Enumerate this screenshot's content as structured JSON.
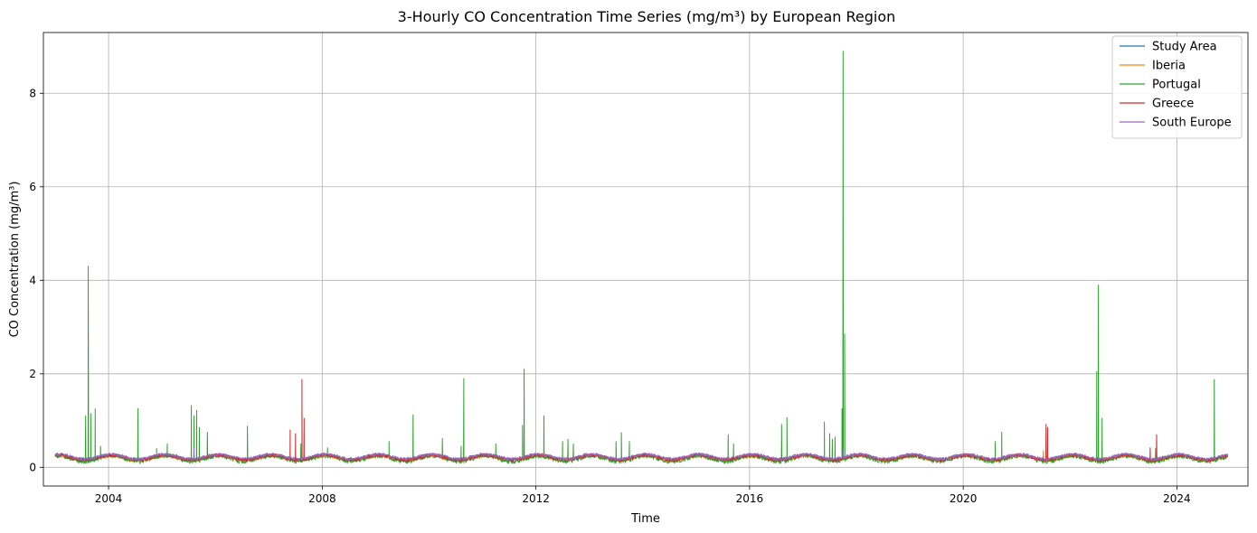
{
  "chart_data": {
    "type": "line",
    "title": "3-Hourly CO Concentration Time Series (mg/m³) by European Region",
    "xlabel": "Time",
    "ylabel": "CO Concentration (mg/m³)",
    "xlim": [
      2002.78,
      2025.33
    ],
    "ylim": [
      -0.4,
      9.3
    ],
    "x_ticks": [
      2004,
      2008,
      2012,
      2016,
      2020,
      2024
    ],
    "x_tick_labels": [
      "2004",
      "2008",
      "2012",
      "2016",
      "2020",
      "2024"
    ],
    "y_ticks": [
      0,
      2,
      4,
      6,
      8
    ],
    "y_tick_labels": [
      "0",
      "2",
      "4",
      "6",
      "8"
    ],
    "grid": true,
    "legend_position": "top-right",
    "data_range": [
      2003.0,
      2024.95
    ],
    "series": [
      {
        "name": "Study Area",
        "color": "#1f77b4",
        "baseline": {
          "mean": 0.21,
          "amplitude": 0.05,
          "noise": 0.035
        },
        "spikes": []
      },
      {
        "name": "Iberia",
        "color": "#ff7f0e",
        "baseline": {
          "mean": 0.2,
          "amplitude": 0.05,
          "noise": 0.04
        },
        "spikes": [
          [
            2012.6,
            0.45
          ],
          [
            2016.6,
            0.38
          ],
          [
            2021.5,
            0.36
          ]
        ]
      },
      {
        "name": "Portugal",
        "color": "#2ca02c",
        "baseline": {
          "mean": 0.19,
          "amplitude": 0.06,
          "noise": 0.05
        },
        "spikes": [
          [
            2003.57,
            1.1
          ],
          [
            2003.62,
            4.3
          ],
          [
            2003.67,
            1.15
          ],
          [
            2003.75,
            1.25
          ],
          [
            2003.85,
            0.45
          ],
          [
            2004.55,
            1.26
          ],
          [
            2004.9,
            0.4
          ],
          [
            2005.1,
            0.5
          ],
          [
            2005.55,
            1.32
          ],
          [
            2005.6,
            1.1
          ],
          [
            2005.65,
            1.22
          ],
          [
            2005.7,
            0.85
          ],
          [
            2005.85,
            0.75
          ],
          [
            2006.6,
            0.88
          ],
          [
            2007.6,
            0.5
          ],
          [
            2008.1,
            0.42
          ],
          [
            2009.25,
            0.55
          ],
          [
            2009.7,
            1.12
          ],
          [
            2010.25,
            0.62
          ],
          [
            2010.6,
            0.45
          ],
          [
            2010.65,
            1.9
          ],
          [
            2011.25,
            0.5
          ],
          [
            2011.75,
            0.9
          ],
          [
            2011.78,
            2.1
          ],
          [
            2012.15,
            1.1
          ],
          [
            2012.5,
            0.55
          ],
          [
            2012.6,
            0.6
          ],
          [
            2012.7,
            0.5
          ],
          [
            2013.5,
            0.55
          ],
          [
            2013.6,
            0.74
          ],
          [
            2013.75,
            0.55
          ],
          [
            2015.6,
            0.7
          ],
          [
            2015.7,
            0.5
          ],
          [
            2016.6,
            0.92
          ],
          [
            2016.7,
            1.06
          ],
          [
            2017.4,
            0.97
          ],
          [
            2017.5,
            0.72
          ],
          [
            2017.55,
            0.6
          ],
          [
            2017.6,
            0.65
          ],
          [
            2017.73,
            1.25
          ],
          [
            2017.75,
            8.9
          ],
          [
            2017.78,
            2.85
          ],
          [
            2020.6,
            0.55
          ],
          [
            2020.72,
            0.75
          ],
          [
            2022.5,
            2.05
          ],
          [
            2022.53,
            3.9
          ],
          [
            2022.6,
            1.05
          ],
          [
            2023.6,
            0.4
          ],
          [
            2024.7,
            1.88
          ]
        ]
      },
      {
        "name": "Greece",
        "color": "#d62728",
        "baseline": {
          "mean": 0.21,
          "amplitude": 0.05,
          "noise": 0.035
        },
        "spikes": [
          [
            2007.4,
            0.8
          ],
          [
            2007.5,
            0.72
          ],
          [
            2007.62,
            1.88
          ],
          [
            2007.66,
            1.05
          ],
          [
            2021.55,
            0.92
          ],
          [
            2021.58,
            0.85
          ],
          [
            2023.5,
            0.42
          ],
          [
            2023.62,
            0.7
          ]
        ]
      },
      {
        "name": "South Europe",
        "color": "#9467bd",
        "baseline": {
          "mean": 0.23,
          "amplitude": 0.05,
          "noise": 0.03
        },
        "spikes": [
          [
            2005.6,
            0.42
          ],
          [
            2017.75,
            0.38
          ]
        ]
      }
    ]
  }
}
